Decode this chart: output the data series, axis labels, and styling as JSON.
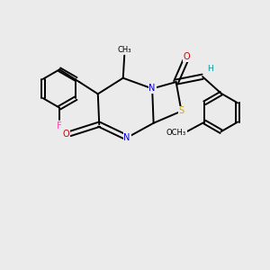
{
  "bg_color": "#ebebeb",
  "atom_colors": {
    "C": "#000000",
    "N": "#0000cc",
    "O": "#cc0000",
    "S": "#ccaa00",
    "F": "#ff44aa",
    "H": "#009999"
  },
  "figsize": [
    3.0,
    3.0
  ],
  "dpi": 100,
  "lw": 1.4,
  "fs": 7.0
}
